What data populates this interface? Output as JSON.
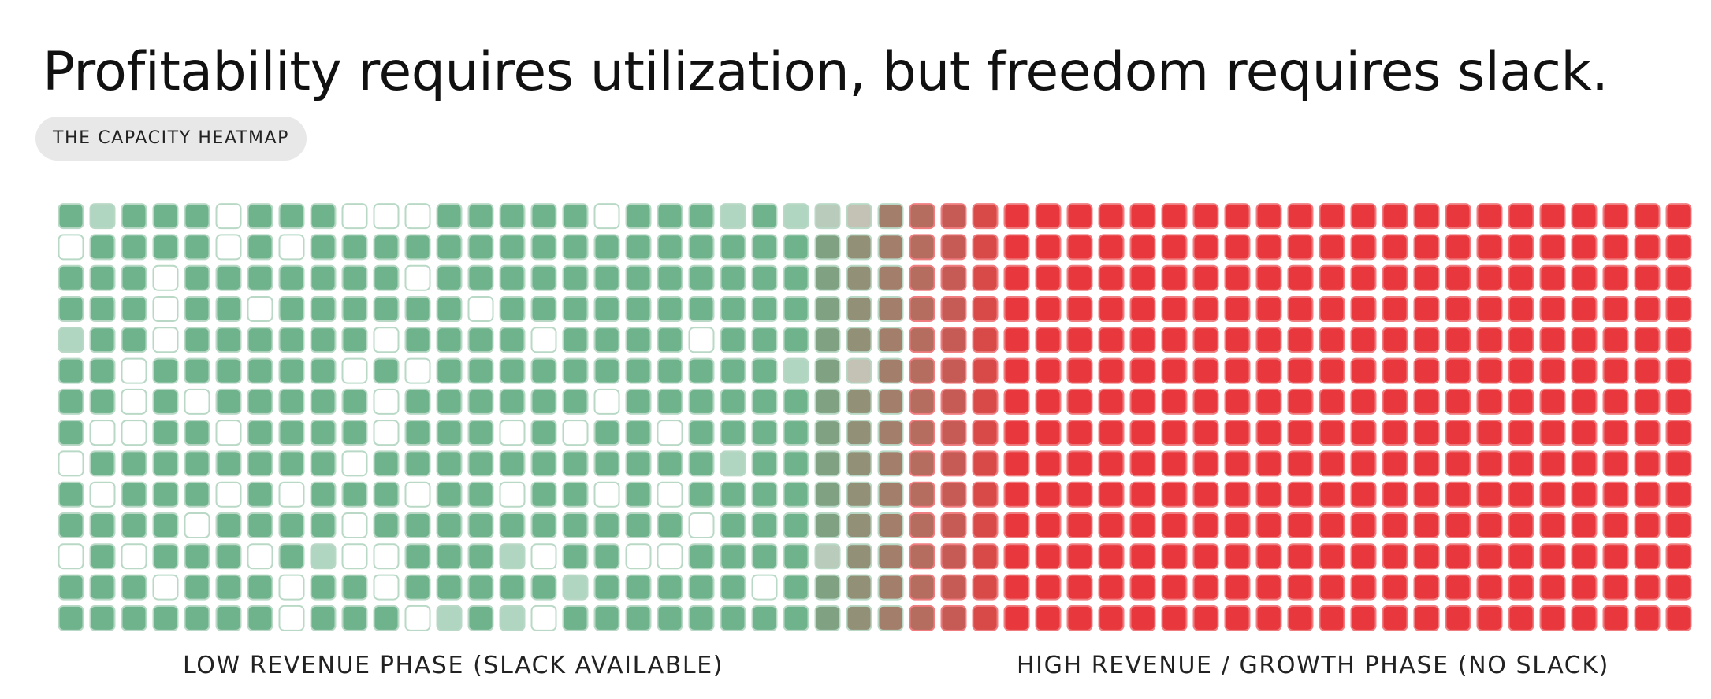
{
  "header": {
    "title": "Profitability requires utilization, but freedom requires slack.",
    "tag": "THE CAPACITY HEATMAP"
  },
  "chart_data": {
    "type": "heatmap",
    "rows": 14,
    "columns": 52,
    "x_labels": [
      "LOW REVENUE PHASE (SLACK AVAILABLE)",
      "HIGH REVENUE / GROWTH PHASE (NO SLACK)"
    ],
    "legend": "none",
    "grid": false,
    "colors": {
      "utilized_low": "#6fb38d",
      "utilized_high": "#e8383d",
      "slack": "#ffffff",
      "cell_border": "#b9d9c6"
    },
    "state_codes": {
      "0": "slack (unfilled)",
      "1": "light fill",
      "2": "filled"
    },
    "values": [
      [
        2,
        1,
        2,
        2,
        2,
        0,
        2,
        2,
        2,
        0,
        0,
        0,
        2,
        2,
        2,
        2,
        2,
        0,
        2,
        2,
        2,
        1,
        2,
        1,
        1,
        1,
        2,
        2,
        2,
        2,
        2,
        2,
        2,
        2,
        2,
        2,
        2,
        2,
        2,
        2,
        2,
        2,
        2,
        2,
        2,
        2,
        2,
        2,
        2,
        2,
        2,
        2
      ],
      [
        0,
        2,
        2,
        2,
        2,
        0,
        2,
        0,
        2,
        2,
        2,
        2,
        2,
        2,
        2,
        2,
        2,
        2,
        2,
        2,
        2,
        2,
        2,
        2,
        2,
        2,
        2,
        2,
        2,
        2,
        2,
        2,
        2,
        2,
        2,
        2,
        2,
        2,
        2,
        2,
        2,
        2,
        2,
        2,
        2,
        2,
        2,
        2,
        2,
        2,
        2,
        2
      ],
      [
        2,
        2,
        2,
        0,
        2,
        2,
        2,
        2,
        2,
        2,
        2,
        0,
        2,
        2,
        2,
        2,
        2,
        2,
        2,
        2,
        2,
        2,
        2,
        2,
        2,
        2,
        2,
        2,
        2,
        2,
        2,
        2,
        2,
        2,
        2,
        2,
        2,
        2,
        2,
        2,
        2,
        2,
        2,
        2,
        2,
        2,
        2,
        2,
        2,
        2,
        2,
        2
      ],
      [
        2,
        2,
        2,
        0,
        2,
        2,
        0,
        2,
        2,
        2,
        2,
        2,
        2,
        0,
        2,
        2,
        2,
        2,
        2,
        2,
        2,
        2,
        2,
        2,
        2,
        2,
        2,
        2,
        2,
        2,
        2,
        2,
        2,
        2,
        2,
        2,
        2,
        2,
        2,
        2,
        2,
        2,
        2,
        2,
        2,
        2,
        2,
        2,
        2,
        2,
        2,
        2
      ],
      [
        1,
        2,
        2,
        0,
        2,
        2,
        2,
        2,
        2,
        2,
        0,
        2,
        2,
        2,
        2,
        0,
        2,
        2,
        2,
        2,
        0,
        2,
        2,
        2,
        2,
        2,
        2,
        2,
        2,
        2,
        2,
        2,
        2,
        2,
        2,
        2,
        2,
        2,
        2,
        2,
        2,
        2,
        2,
        2,
        2,
        2,
        2,
        2,
        2,
        2,
        2,
        2
      ],
      [
        2,
        2,
        0,
        2,
        2,
        2,
        2,
        2,
        2,
        0,
        2,
        0,
        2,
        2,
        2,
        2,
        2,
        2,
        2,
        2,
        2,
        2,
        2,
        1,
        2,
        1,
        2,
        2,
        2,
        2,
        2,
        2,
        2,
        2,
        2,
        2,
        2,
        2,
        2,
        2,
        2,
        2,
        2,
        2,
        2,
        2,
        2,
        2,
        2,
        2,
        2,
        2
      ],
      [
        2,
        2,
        0,
        2,
        0,
        2,
        2,
        2,
        2,
        2,
        0,
        2,
        2,
        2,
        2,
        2,
        2,
        0,
        2,
        2,
        2,
        2,
        2,
        2,
        2,
        2,
        2,
        2,
        2,
        2,
        2,
        2,
        2,
        2,
        2,
        2,
        2,
        2,
        2,
        2,
        2,
        2,
        2,
        2,
        2,
        2,
        2,
        2,
        2,
        2,
        2,
        2
      ],
      [
        2,
        0,
        0,
        2,
        2,
        0,
        2,
        2,
        2,
        2,
        0,
        2,
        2,
        2,
        0,
        2,
        0,
        2,
        2,
        0,
        2,
        2,
        2,
        2,
        2,
        2,
        2,
        2,
        2,
        2,
        2,
        2,
        2,
        2,
        2,
        2,
        2,
        2,
        2,
        2,
        2,
        2,
        2,
        2,
        2,
        2,
        2,
        2,
        2,
        2,
        2,
        2
      ],
      [
        0,
        2,
        2,
        2,
        2,
        2,
        2,
        2,
        2,
        0,
        2,
        2,
        2,
        2,
        2,
        2,
        2,
        2,
        2,
        2,
        2,
        1,
        2,
        2,
        2,
        2,
        2,
        2,
        2,
        2,
        2,
        2,
        2,
        2,
        2,
        2,
        2,
        2,
        2,
        2,
        2,
        2,
        2,
        2,
        2,
        2,
        2,
        2,
        2,
        2,
        2,
        2
      ],
      [
        2,
        0,
        2,
        2,
        2,
        0,
        2,
        0,
        2,
        2,
        2,
        0,
        2,
        2,
        0,
        2,
        2,
        0,
        2,
        0,
        2,
        2,
        2,
        2,
        2,
        2,
        2,
        2,
        2,
        2,
        2,
        2,
        2,
        2,
        2,
        2,
        2,
        2,
        2,
        2,
        2,
        2,
        2,
        2,
        2,
        2,
        2,
        2,
        2,
        2,
        2,
        2
      ],
      [
        2,
        2,
        2,
        2,
        0,
        2,
        2,
        2,
        2,
        0,
        2,
        2,
        2,
        2,
        2,
        2,
        2,
        2,
        2,
        2,
        0,
        2,
        2,
        2,
        2,
        2,
        2,
        2,
        2,
        2,
        2,
        2,
        2,
        2,
        2,
        2,
        2,
        2,
        2,
        2,
        2,
        2,
        2,
        2,
        2,
        2,
        2,
        2,
        2,
        2,
        2,
        2
      ],
      [
        0,
        2,
        0,
        2,
        2,
        2,
        0,
        2,
        1,
        0,
        0,
        2,
        2,
        2,
        1,
        0,
        2,
        2,
        0,
        0,
        2,
        2,
        2,
        2,
        1,
        2,
        2,
        2,
        2,
        2,
        2,
        2,
        2,
        2,
        2,
        2,
        2,
        2,
        2,
        2,
        2,
        2,
        2,
        2,
        2,
        2,
        2,
        2,
        2,
        2,
        2,
        2
      ],
      [
        2,
        2,
        2,
        0,
        2,
        2,
        2,
        0,
        2,
        2,
        0,
        2,
        2,
        2,
        2,
        2,
        1,
        2,
        2,
        2,
        2,
        2,
        0,
        2,
        2,
        2,
        2,
        2,
        2,
        2,
        2,
        2,
        2,
        2,
        2,
        2,
        2,
        2,
        2,
        2,
        2,
        2,
        2,
        2,
        2,
        2,
        2,
        2,
        2,
        2,
        2,
        2
      ],
      [
        2,
        2,
        2,
        2,
        2,
        2,
        2,
        0,
        2,
        2,
        2,
        0,
        1,
        2,
        1,
        0,
        2,
        2,
        2,
        2,
        2,
        2,
        2,
        2,
        2,
        2,
        2,
        2,
        2,
        2,
        2,
        2,
        2,
        2,
        2,
        2,
        2,
        2,
        2,
        2,
        2,
        2,
        2,
        2,
        2,
        2,
        2,
        2,
        2,
        2,
        2,
        2
      ]
    ]
  }
}
